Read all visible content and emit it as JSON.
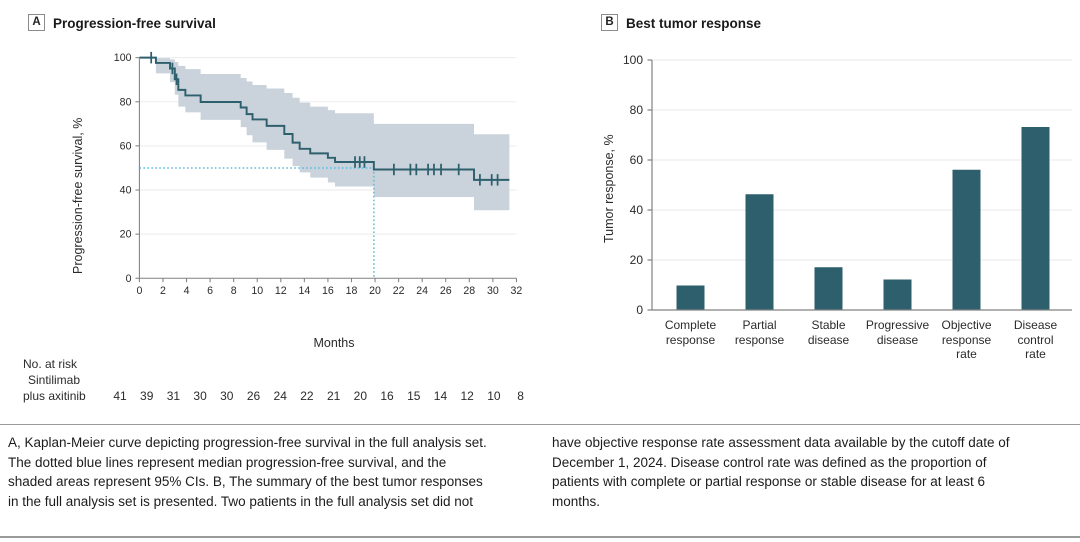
{
  "colors": {
    "teal": "#2E5F6D",
    "ci_band": "#C7D1D9",
    "median_blue": "#58BCDF",
    "grid": "#E9E9E9",
    "axis": "#828282",
    "text": "#2B2B2B"
  },
  "panelA": {
    "label": "A",
    "title": "Progression-free survival",
    "ylabel": "Progression-free survival, %",
    "xlabel": "Months",
    "at_risk_header": "No. at risk",
    "arm_line1": "Sintilimab",
    "arm_line2": "plus axitinib"
  },
  "panelB": {
    "label": "B",
    "title": "Best tumor response",
    "ylabel": "Tumor response, %"
  },
  "caption": {
    "left": "A, Kaplan-Meier curve depicting progression-free survival in the full analysis set.\nThe dotted blue lines represent median progression-free survival, and the\nshaded areas represent 95% CIs. B, The summary of the best tumor responses\nin the full analysis set is presented. Two patients in the full analysis set did not",
    "right": "have objective response rate assessment data available by the cutoff date of\nDecember 1, 2024. Disease control rate was defined as the proportion of\npatients with complete or partial response or stable disease for at least 6\nmonths."
  },
  "chart_data": [
    {
      "type": "line",
      "subtype": "kaplan-meier-step",
      "title": "Progression-free survival",
      "xlabel": "Months",
      "ylabel": "Progression-free survival, %",
      "xlim": [
        0,
        32
      ],
      "ylim": [
        0,
        100
      ],
      "xticks": [
        0,
        2,
        4,
        6,
        8,
        10,
        12,
        14,
        16,
        18,
        20,
        22,
        24,
        26,
        28,
        30,
        32
      ],
      "yticks": [
        0,
        20,
        40,
        60,
        80,
        100
      ],
      "grid": true,
      "legend": "none",
      "median_line": {
        "x": 19.9,
        "y": 50
      },
      "series": [
        {
          "name": "Sintilimab plus axitinib",
          "start": [
            0,
            100
          ],
          "end_x": 31.4,
          "drops": [
            [
              1.4,
              97.6
            ],
            [
              2.6,
              95.1
            ],
            [
              3.0,
              90.2
            ],
            [
              3.3,
              85.4
            ],
            [
              3.9,
              82.9
            ],
            [
              5.2,
              79.9
            ],
            [
              8.6,
              77.4
            ],
            [
              9.1,
              74.4
            ],
            [
              9.6,
              72.0
            ],
            [
              10.8,
              69.1
            ],
            [
              12.3,
              65.4
            ],
            [
              13.0,
              61.5
            ],
            [
              13.6,
              58.7
            ],
            [
              14.5,
              56.6
            ],
            [
              16.0,
              54.6
            ],
            [
              16.6,
              52.7
            ],
            [
              19.9,
              49.3
            ],
            [
              28.4,
              44.6
            ]
          ],
          "censor_marks": [
            [
              1.0,
              100
            ],
            [
              2.8,
              95.1
            ],
            [
              3.15,
              90.2
            ],
            [
              18.3,
              52.7
            ],
            [
              18.7,
              52.7
            ],
            [
              19.1,
              52.7
            ],
            [
              21.6,
              49.3
            ],
            [
              23.0,
              49.3
            ],
            [
              23.5,
              49.3
            ],
            [
              24.5,
              49.3
            ],
            [
              25.0,
              49.3
            ],
            [
              25.6,
              49.3
            ],
            [
              27.1,
              49.3
            ],
            [
              28.9,
              44.6
            ],
            [
              29.9,
              44.6
            ],
            [
              30.4,
              44.6
            ]
          ],
          "ci_upper": [
            [
              1.4,
              99.8
            ],
            [
              2.6,
              99.2
            ],
            [
              3.0,
              98.0
            ],
            [
              3.3,
              96.3
            ],
            [
              3.9,
              94.8
            ],
            [
              5.2,
              92.6
            ],
            [
              8.6,
              90.8
            ],
            [
              9.1,
              89.2
            ],
            [
              9.6,
              87.6
            ],
            [
              10.8,
              86.0
            ],
            [
              12.3,
              84.0
            ],
            [
              13.0,
              81.8
            ],
            [
              13.6,
              79.6
            ],
            [
              14.5,
              77.8
            ],
            [
              16.0,
              76.2
            ],
            [
              16.6,
              74.8
            ],
            [
              19.9,
              70.0
            ],
            [
              28.4,
              65.3
            ]
          ],
          "ci_lower": [
            [
              1.4,
              92.9
            ],
            [
              2.6,
              88.9
            ],
            [
              3.0,
              83.2
            ],
            [
              3.3,
              77.8
            ],
            [
              3.9,
              75.2
            ],
            [
              5.2,
              71.8
            ],
            [
              8.6,
              68.5
            ],
            [
              9.1,
              64.8
            ],
            [
              9.6,
              61.6
            ],
            [
              10.8,
              58.2
            ],
            [
              12.3,
              54.2
            ],
            [
              13.0,
              50.8
            ],
            [
              13.6,
              48.0
            ],
            [
              14.5,
              45.6
            ],
            [
              16.0,
              43.4
            ],
            [
              16.6,
              41.6
            ],
            [
              19.9,
              36.8
            ],
            [
              28.4,
              30.8
            ]
          ]
        }
      ],
      "at_risk": {
        "label": "Sintilimab plus axitinib",
        "times": [
          0,
          2,
          4,
          6,
          8,
          10,
          12,
          14,
          16,
          18,
          20,
          22,
          24,
          26,
          28,
          30
        ],
        "values": [
          41,
          39,
          31,
          30,
          30,
          26,
          24,
          22,
          21,
          20,
          16,
          15,
          14,
          12,
          10,
          8
        ]
      }
    },
    {
      "type": "bar",
      "title": "Best tumor response",
      "xlabel": "",
      "ylabel": "Tumor response, %",
      "ylim": [
        0,
        100
      ],
      "yticks": [
        0,
        20,
        40,
        60,
        80,
        100
      ],
      "grid": true,
      "categories": [
        "Complete\nresponse",
        "Partial\nresponse",
        "Stable\ndisease",
        "Progressive\ndisease",
        "Objective\nresponse\nrate",
        "Disease\ncontrol\nrate"
      ],
      "values": [
        9.8,
        46.3,
        17.1,
        12.2,
        56.1,
        73.2
      ]
    }
  ]
}
